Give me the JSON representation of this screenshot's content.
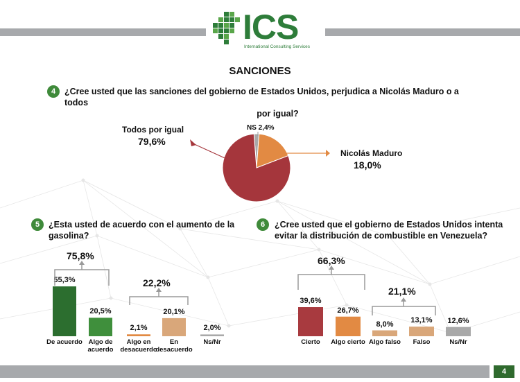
{
  "logo": {
    "text": "ICS",
    "subtitle": "International Consulting Services"
  },
  "page_title": "SANCIONES",
  "page_number": "4",
  "colors": {
    "dark_green": "#2c6e2f",
    "green": "#3f8f3c",
    "orange": "#e28a43",
    "tan": "#d9a77a",
    "gray": "#a9a9a9",
    "dark_red": "#a83a3f",
    "sanction_red": "#a5363c"
  },
  "q4": {
    "number": "4",
    "text_line1": "¿Cree usted que las sanciones del gobierno de Estados Unidos, perjudica a Nicolás Maduro o a todos",
    "text_line2": "por igual?",
    "labels": {
      "todos": "Todos por igual",
      "todos_value": "79,6%",
      "maduro": "Nicolás Maduro",
      "maduro_value": "18,0%",
      "ns": "NS 2,4%"
    }
  },
  "q5": {
    "number": "5",
    "text_line1": "¿Esta usted de acuerdo con el aumento de la",
    "text_line2": "gasolina?",
    "group_totals": [
      "75,8%",
      "22,2%"
    ]
  },
  "q6": {
    "number": "6",
    "text_line1": "¿Cree usted que el gobierno de Estados Unidos intenta",
    "text_line2": "evitar la distribución de combustible en Venezuela?",
    "group_totals": [
      "66,3%",
      "21,1%"
    ]
  },
  "chart_data": [
    {
      "type": "pie",
      "title": "¿Cree usted que las sanciones del gobierno de Estados Unidos, perjudica a Nicolás Maduro o a todos por igual?",
      "categories": [
        "Todos por igual",
        "Nicolás Maduro",
        "NS"
      ],
      "values": [
        79.6,
        18.0,
        2.4
      ],
      "value_labels": [
        "79,6%",
        "18,0%",
        "2,4%"
      ]
    },
    {
      "type": "bar",
      "title": "¿Esta usted de acuerdo con el aumento de la gasolina?",
      "categories": [
        "De acuerdo",
        "Algo de acuerdo",
        "Algo en desacuerdo",
        "En desacuerdo",
        "Ns/Nr"
      ],
      "values": [
        55.3,
        20.5,
        2.1,
        20.1,
        2.0
      ],
      "value_labels": [
        "55,3%",
        "20,5%",
        "2,1%",
        "20,1%",
        "2,0%"
      ],
      "colors": [
        "#2c6e2f",
        "#3f8f3c",
        "#e28a43",
        "#d9a77a",
        "#a9a9a9"
      ]
    },
    {
      "type": "bar",
      "title": "¿Cree usted que el gobierno de Estados Unidos intenta evitar la distribución de combustible en Venezuela?",
      "categories": [
        "Cierto",
        "Algo cierto",
        "Algo falso",
        "Falso",
        "Ns/Nr"
      ],
      "values": [
        39.6,
        26.7,
        8.0,
        13.1,
        12.6
      ],
      "value_labels": [
        "39,6%",
        "26,7%",
        "8,0%",
        "13,1%",
        "12,6%"
      ],
      "colors": [
        "#a83a3f",
        "#e28a43",
        "#d9a77a",
        "#d9a77a",
        "#a9a9a9"
      ]
    }
  ]
}
